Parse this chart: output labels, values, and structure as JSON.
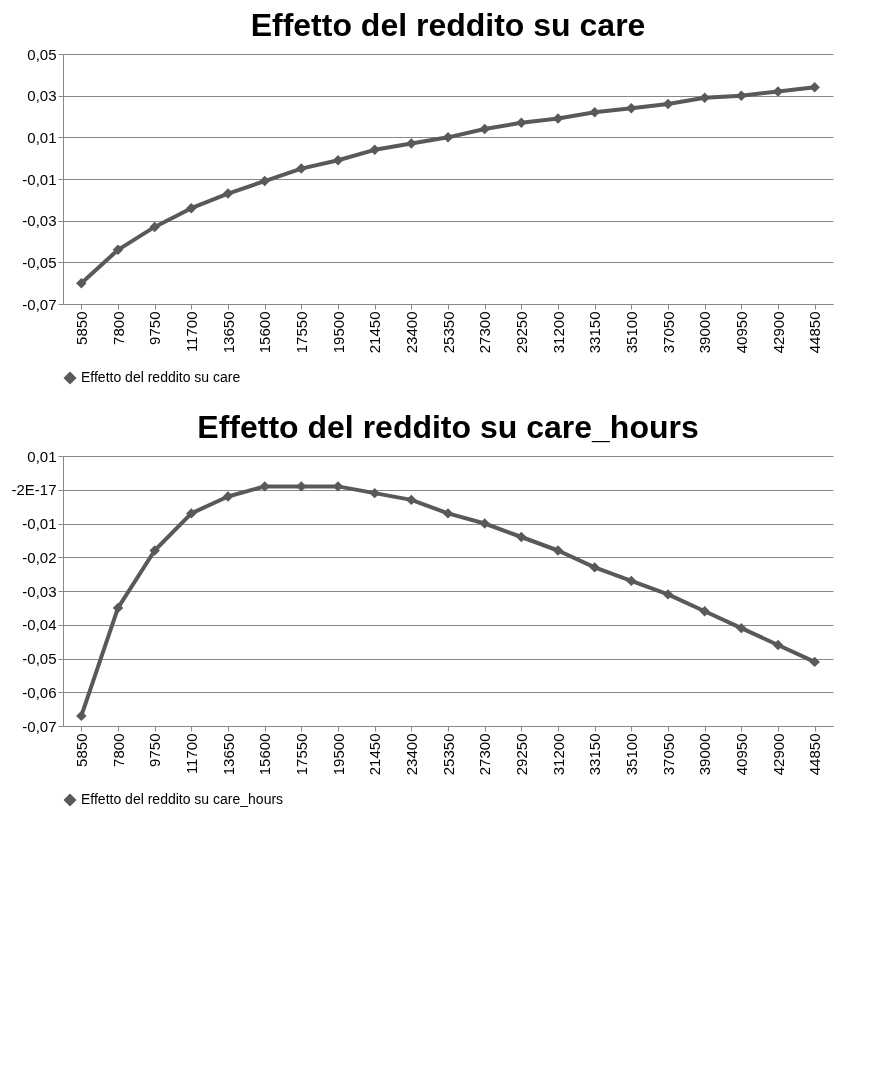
{
  "chart_data": [
    {
      "type": "line",
      "title": "Effetto del reddito su care",
      "categories": [
        "5850",
        "7800",
        "9750",
        "11700",
        "13650",
        "15600",
        "17550",
        "19500",
        "21450",
        "23400",
        "25350",
        "27300",
        "29250",
        "31200",
        "33150",
        "35100",
        "37050",
        "39000",
        "40950",
        "42900",
        "44850"
      ],
      "series": [
        {
          "name": "Effetto del reddito su care",
          "color": "#595959",
          "values": [
            -0.06,
            -0.044,
            -0.033,
            -0.024,
            -0.017,
            -0.011,
            -0.005,
            -0.001,
            0.004,
            0.007,
            0.01,
            0.014,
            0.017,
            0.019,
            0.022,
            0.024,
            0.026,
            0.029,
            0.03,
            0.032,
            0.034
          ]
        }
      ],
      "ylim": [
        -0.07,
        0.05
      ],
      "yticks": [
        {
          "value": -0.07,
          "label": "-0,07"
        },
        {
          "value": -0.05,
          "label": "-0,05"
        },
        {
          "value": -0.03,
          "label": "-0,03"
        },
        {
          "value": -0.01,
          "label": "-0,01"
        },
        {
          "value": 0.01,
          "label": "0,01"
        },
        {
          "value": 0.03,
          "label": "0,03"
        },
        {
          "value": 0.05,
          "label": "0,05"
        }
      ],
      "grid": "y",
      "legend": "bottom",
      "marker": "diamond",
      "line_style": "solid"
    },
    {
      "type": "line",
      "title": "Effetto del reddito su care_hours",
      "categories": [
        "5850",
        "7800",
        "9750",
        "11700",
        "13650",
        "15600",
        "17550",
        "19500",
        "21450",
        "23400",
        "25350",
        "27300",
        "29250",
        "31200",
        "33150",
        "35100",
        "37050",
        "39000",
        "40950",
        "42900",
        "44850"
      ],
      "series": [
        {
          "name": "Effetto del reddito su care_hours",
          "color": "#595959",
          "values": [
            -0.067,
            -0.035,
            -0.018,
            -0.007,
            -0.002,
            0.001,
            0.001,
            0.001,
            -0.001,
            -0.003,
            -0.007,
            -0.01,
            -0.014,
            -0.018,
            -0.023,
            -0.027,
            -0.031,
            -0.036,
            -0.041,
            -0.046,
            -0.051
          ]
        }
      ],
      "ylim": [
        -0.07,
        0.01
      ],
      "yticks": [
        {
          "value": -0.07,
          "label": "-0,07"
        },
        {
          "value": -0.06,
          "label": "-0,06"
        },
        {
          "value": -0.05,
          "label": "-0,05"
        },
        {
          "value": -0.04,
          "label": "-0,04"
        },
        {
          "value": -0.03,
          "label": "-0,03"
        },
        {
          "value": -0.02,
          "label": "-0,02"
        },
        {
          "value": -0.01,
          "label": "-0,01"
        },
        {
          "value": 0,
          "label": "-2E-17"
        },
        {
          "value": 0.01,
          "label": "0,01"
        }
      ],
      "grid": "y",
      "legend": "bottom",
      "marker": "diamond",
      "line_style": "solid"
    }
  ]
}
